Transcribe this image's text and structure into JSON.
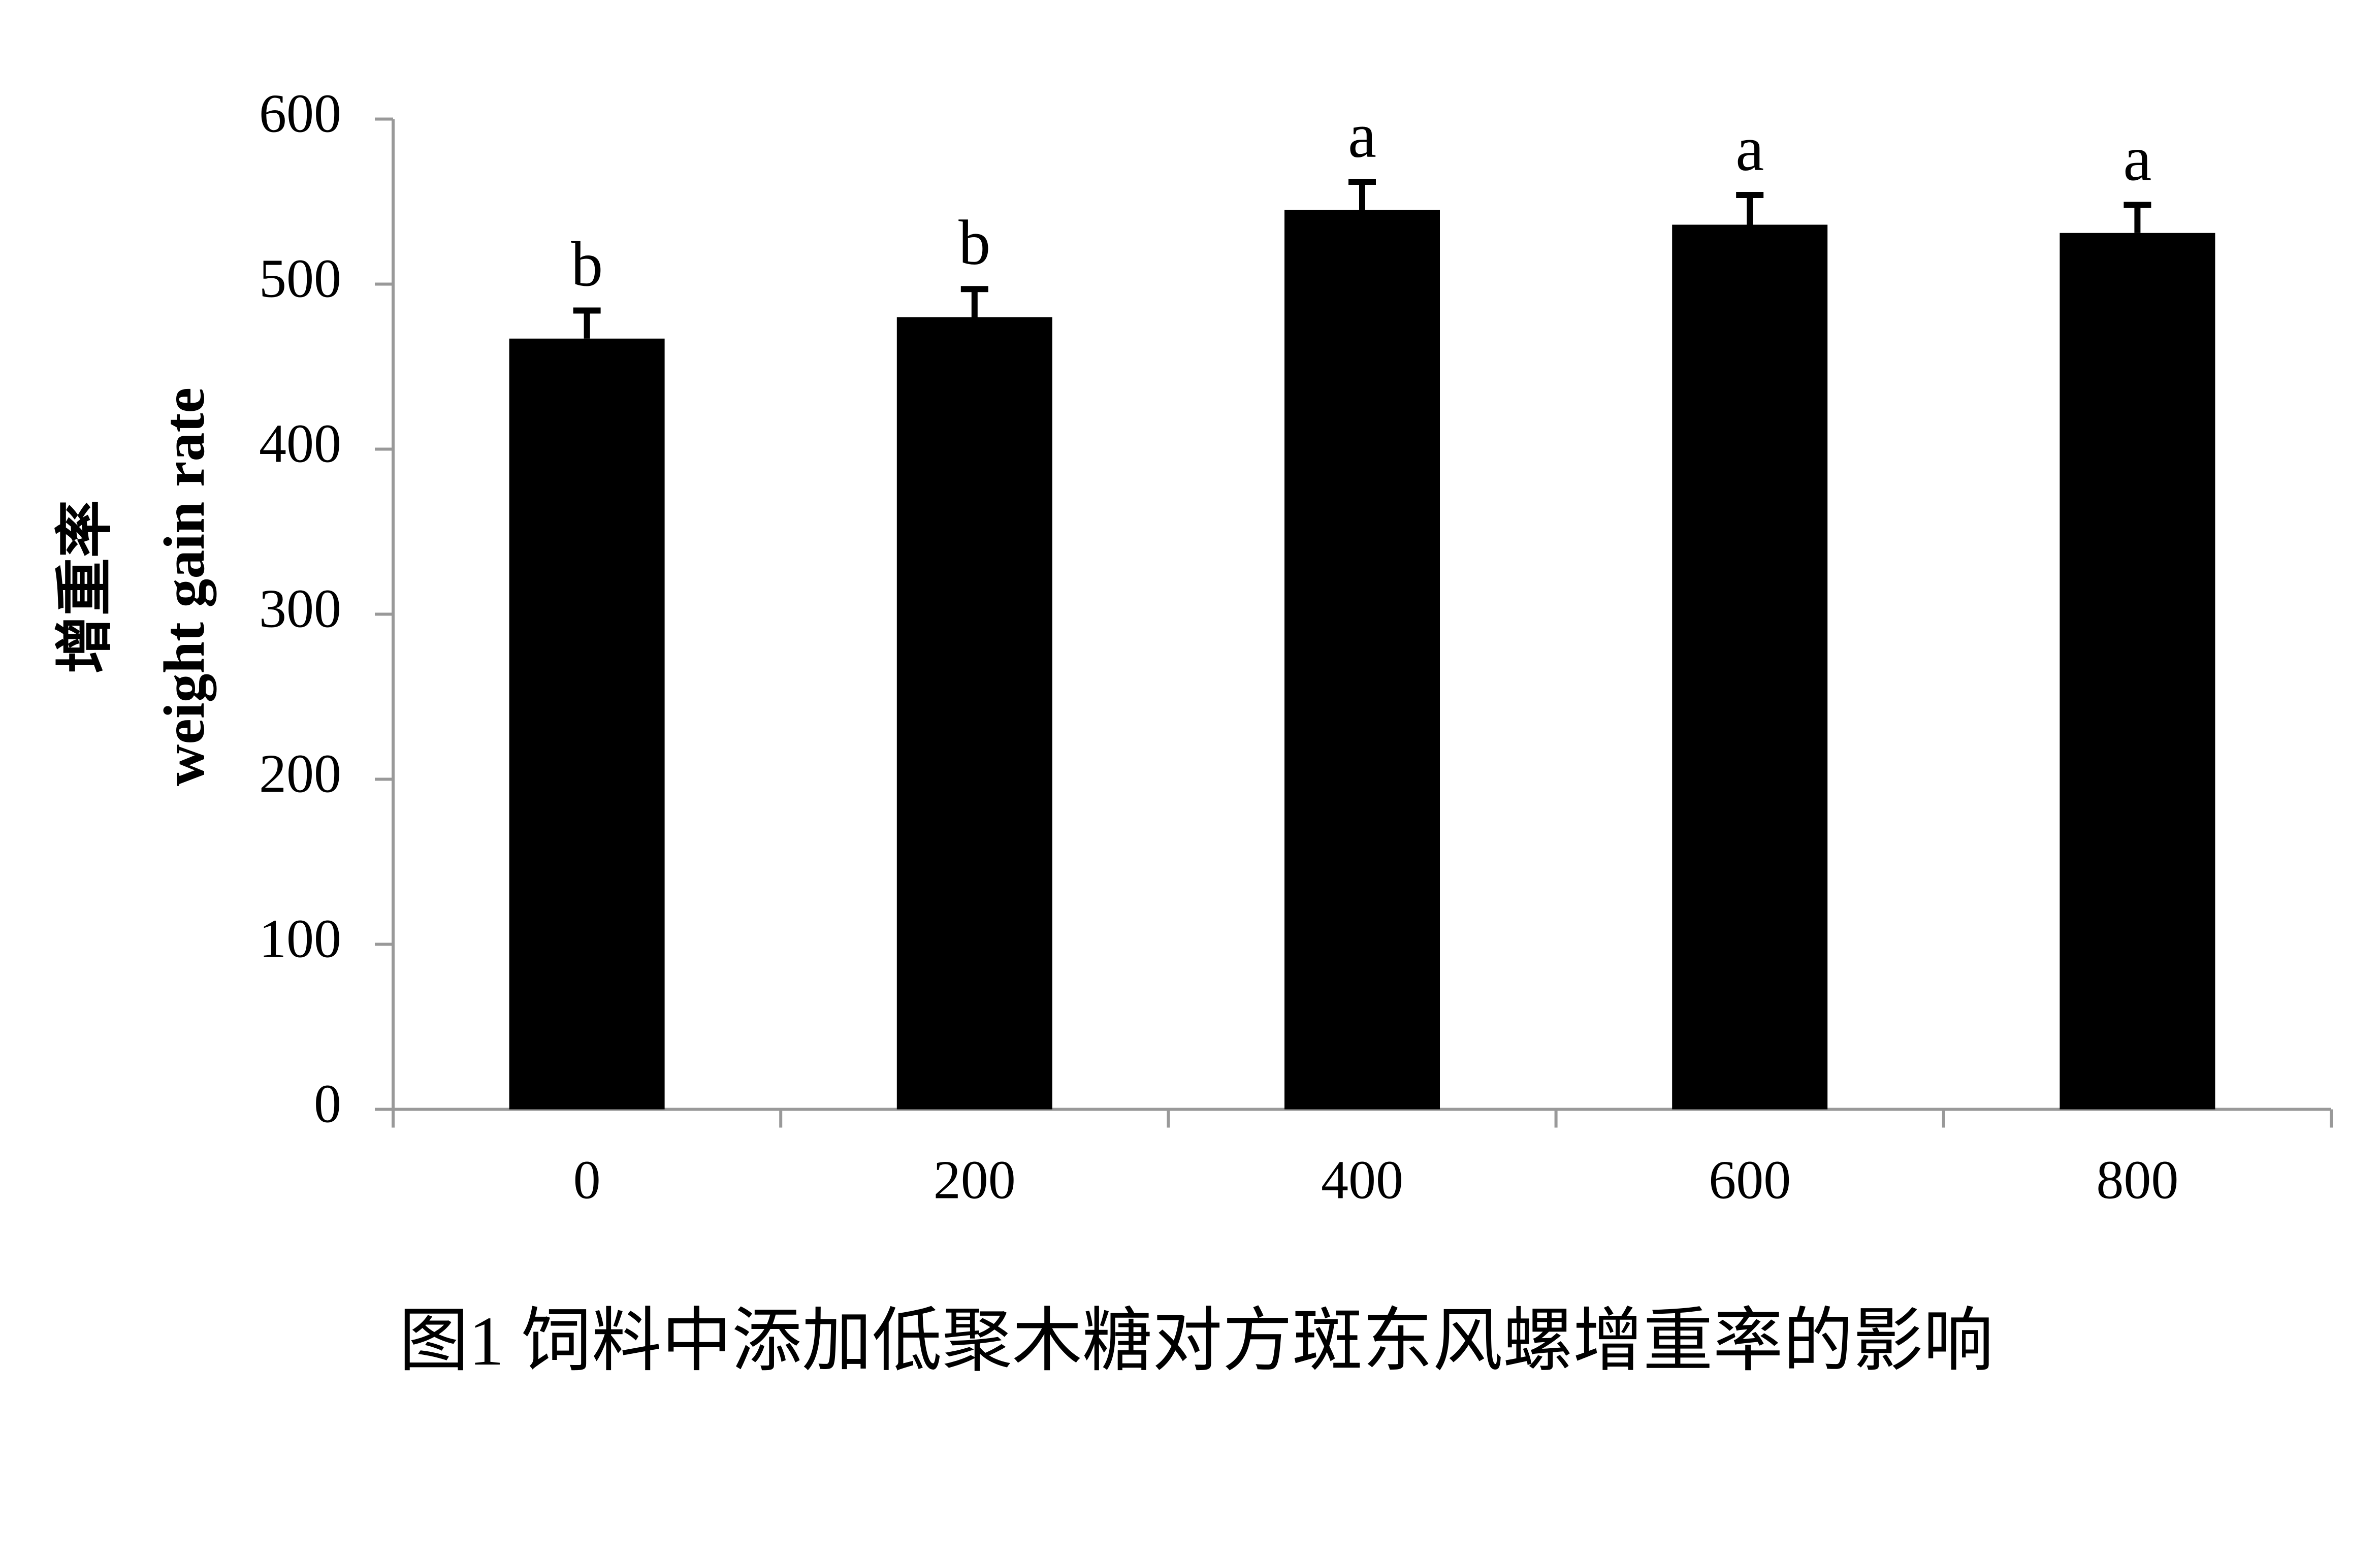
{
  "chart_data": {
    "type": "bar",
    "title": "图1 饲料中添加低聚木糖对方斑东风螺增重率的影响",
    "y_label": [
      "增重率",
      "weight gain rate"
    ],
    "categories": [
      "0",
      "200",
      "400",
      "600",
      "800"
    ],
    "values": [
      467,
      480,
      545,
      536,
      531
    ],
    "errors": [
      17,
      17,
      17,
      18,
      17
    ],
    "letters": [
      "b",
      "b",
      "a",
      "a",
      "a"
    ],
    "color": "#000000",
    "ylim": [
      0,
      600
    ],
    "yticks": [
      0,
      100,
      200,
      300,
      400,
      500,
      600
    ],
    "grid": false
  }
}
